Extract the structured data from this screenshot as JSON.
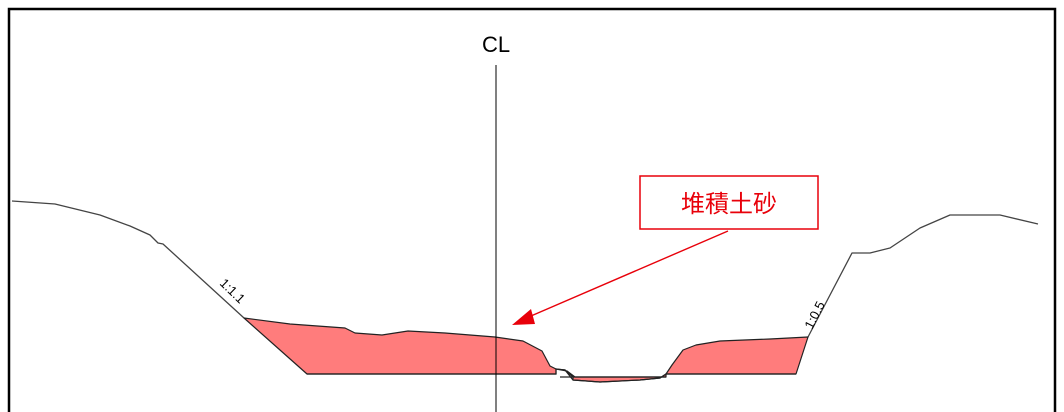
{
  "centerline": {
    "label": "CL"
  },
  "slopes": {
    "left": "1:1.1",
    "right": "1:0.5"
  },
  "callout": {
    "label": "堆積土砂"
  },
  "colors": {
    "sediment_fill": "#ff7c7c",
    "callout": "#e8000a",
    "ground_line": "#444444",
    "frame": "#000000"
  }
}
